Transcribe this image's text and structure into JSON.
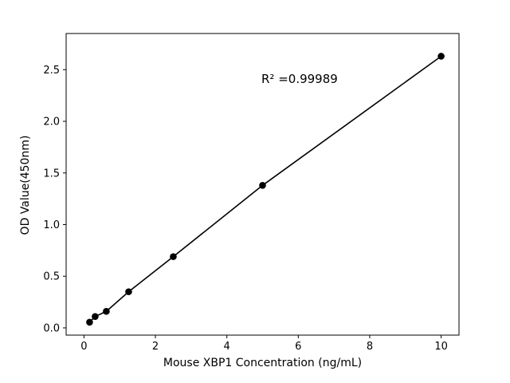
{
  "chart_data": {
    "type": "scatter",
    "title": "",
    "xlabel": "Mouse XBP1 Concentration (ng/mL)",
    "ylabel": "OD Value(450nm)",
    "x": [
      0.156,
      0.3125,
      0.625,
      1.25,
      2.5,
      5,
      10
    ],
    "y": [
      0.055,
      0.11,
      0.16,
      0.35,
      0.69,
      1.38,
      2.63
    ],
    "line": true,
    "annotation": {
      "text": "R² =0.99989",
      "r_squared": 0.99989
    },
    "xticks": [
      0,
      2,
      4,
      6,
      8,
      10
    ],
    "xticklabels": [
      "0",
      "2",
      "4",
      "6",
      "8",
      "10"
    ],
    "yticks": [
      0.0,
      0.5,
      1.0,
      1.5,
      2.0,
      2.5
    ],
    "yticklabels": [
      "0.0",
      "0.5",
      "1.0",
      "1.5",
      "2.0",
      "2.5"
    ],
    "xlim": [
      -0.5,
      10.5
    ],
    "ylim": [
      -0.07,
      2.85
    ],
    "grid": false,
    "legend": "none",
    "marker_color": "#000000",
    "line_color": "#000000",
    "axis_color": "#000000",
    "background": "#ffffff"
  }
}
